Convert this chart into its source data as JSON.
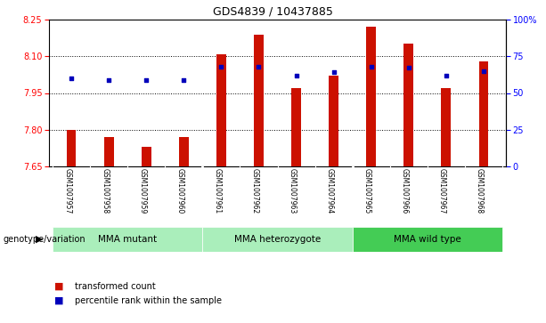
{
  "title": "GDS4839 / 10437885",
  "samples": [
    "GSM1007957",
    "GSM1007958",
    "GSM1007959",
    "GSM1007960",
    "GSM1007961",
    "GSM1007962",
    "GSM1007963",
    "GSM1007964",
    "GSM1007965",
    "GSM1007966",
    "GSM1007967",
    "GSM1007968"
  ],
  "transformed_count": [
    7.8,
    7.77,
    7.73,
    7.77,
    8.11,
    8.19,
    7.97,
    8.02,
    8.22,
    8.15,
    7.97,
    8.08
  ],
  "percentile_rank": [
    60,
    59,
    59,
    59,
    68,
    68,
    62,
    64,
    68,
    67,
    62,
    65
  ],
  "group_starts": [
    0,
    4,
    8
  ],
  "group_ends": [
    3,
    7,
    11
  ],
  "group_labels": [
    "MMA mutant",
    "MMA heterozygote",
    "MMA wild type"
  ],
  "group_colors": [
    "#AAEEBB",
    "#AAEEBB",
    "#44CC55"
  ],
  "ylim_left": [
    7.65,
    8.25
  ],
  "ylim_right": [
    0,
    100
  ],
  "yticks_left": [
    7.65,
    7.8,
    7.95,
    8.1,
    8.25
  ],
  "yticks_right": [
    0,
    25,
    50,
    75,
    100
  ],
  "bar_color": "#CC1100",
  "dot_color": "#0000BB",
  "bar_width": 0.25,
  "grid_yticks": [
    7.8,
    7.95,
    8.1
  ],
  "bg_color": "#C8C8C8",
  "plot_bg": "#FFFFFF",
  "legend_items": [
    "transformed count",
    "percentile rank within the sample"
  ],
  "genotype_label": "genotype/variation"
}
